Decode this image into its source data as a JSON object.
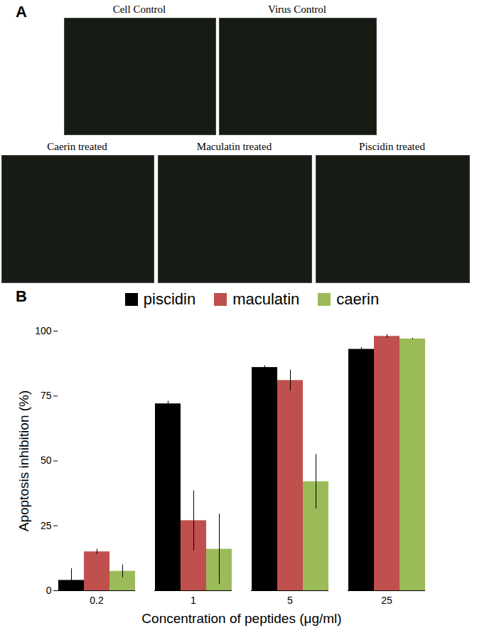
{
  "panel_a": {
    "label": "A",
    "images": [
      "Cell Control",
      "Virus Control",
      "Caerin treated",
      "Maculatin treated",
      "Piscidin treated"
    ]
  },
  "chart_data": {
    "type": "bar",
    "panel": "B",
    "x_label": "Concentration of peptides (μg/ml)",
    "y_label": "Apoptosis inhibition (%)",
    "categories": [
      "0.2",
      "1",
      "5",
      "25"
    ],
    "series": [
      {
        "name": "piscidin",
        "color": "#000000",
        "values": [
          4,
          72,
          86,
          93
        ],
        "errors": [
          4.5,
          1,
          0.7,
          0.7
        ]
      },
      {
        "name": "maculatin",
        "color": "#c0504d",
        "values": [
          15,
          27,
          81,
          98
        ],
        "errors": [
          1,
          11.5,
          4,
          0.7
        ]
      },
      {
        "name": "caerin",
        "color": "#9bbb59",
        "values": [
          7.5,
          16,
          42,
          97
        ],
        "errors": [
          2.5,
          13.5,
          10.5,
          0.3
        ]
      }
    ],
    "ylim": [
      0,
      100
    ],
    "yticks": [
      0,
      25,
      50,
      75,
      100
    ],
    "grid": false,
    "legend": "top"
  }
}
